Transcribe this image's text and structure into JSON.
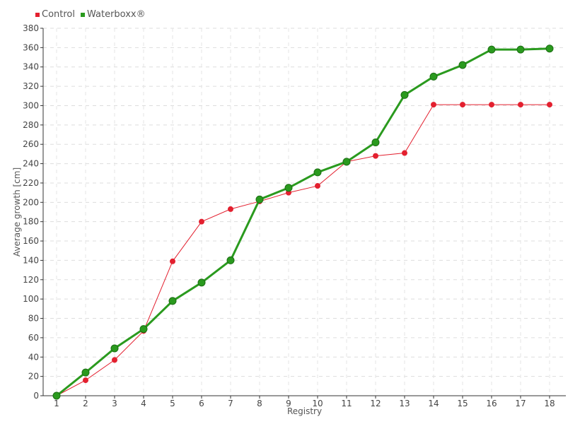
{
  "chart_data": {
    "type": "line",
    "title": "",
    "xlabel": "Registry",
    "ylabel": "Average growth [cm]",
    "categories": [
      "1",
      "2",
      "3",
      "4",
      "5",
      "6",
      "7",
      "8",
      "9",
      "10",
      "11",
      "12",
      "13",
      "14",
      "15",
      "16",
      "17",
      "18"
    ],
    "ylim": [
      0,
      380
    ],
    "yticks": [
      0,
      20,
      40,
      60,
      80,
      100,
      120,
      140,
      160,
      180,
      200,
      220,
      240,
      260,
      280,
      300,
      320,
      340,
      360,
      380
    ],
    "grid": true,
    "legend_position": "top-left",
    "series": [
      {
        "name": "Control",
        "color": "#e3202f",
        "values": [
          0,
          16,
          37,
          67,
          139,
          180,
          193,
          201,
          210,
          217,
          242,
          248,
          251,
          301,
          301,
          301,
          301,
          301
        ]
      },
      {
        "name": "Waterboxx®",
        "color": "#2a9a1e",
        "values": [
          0,
          24,
          49,
          69,
          98,
          117,
          140,
          203,
          215,
          231,
          242,
          262,
          311,
          330,
          342,
          358,
          358,
          359
        ]
      }
    ]
  }
}
